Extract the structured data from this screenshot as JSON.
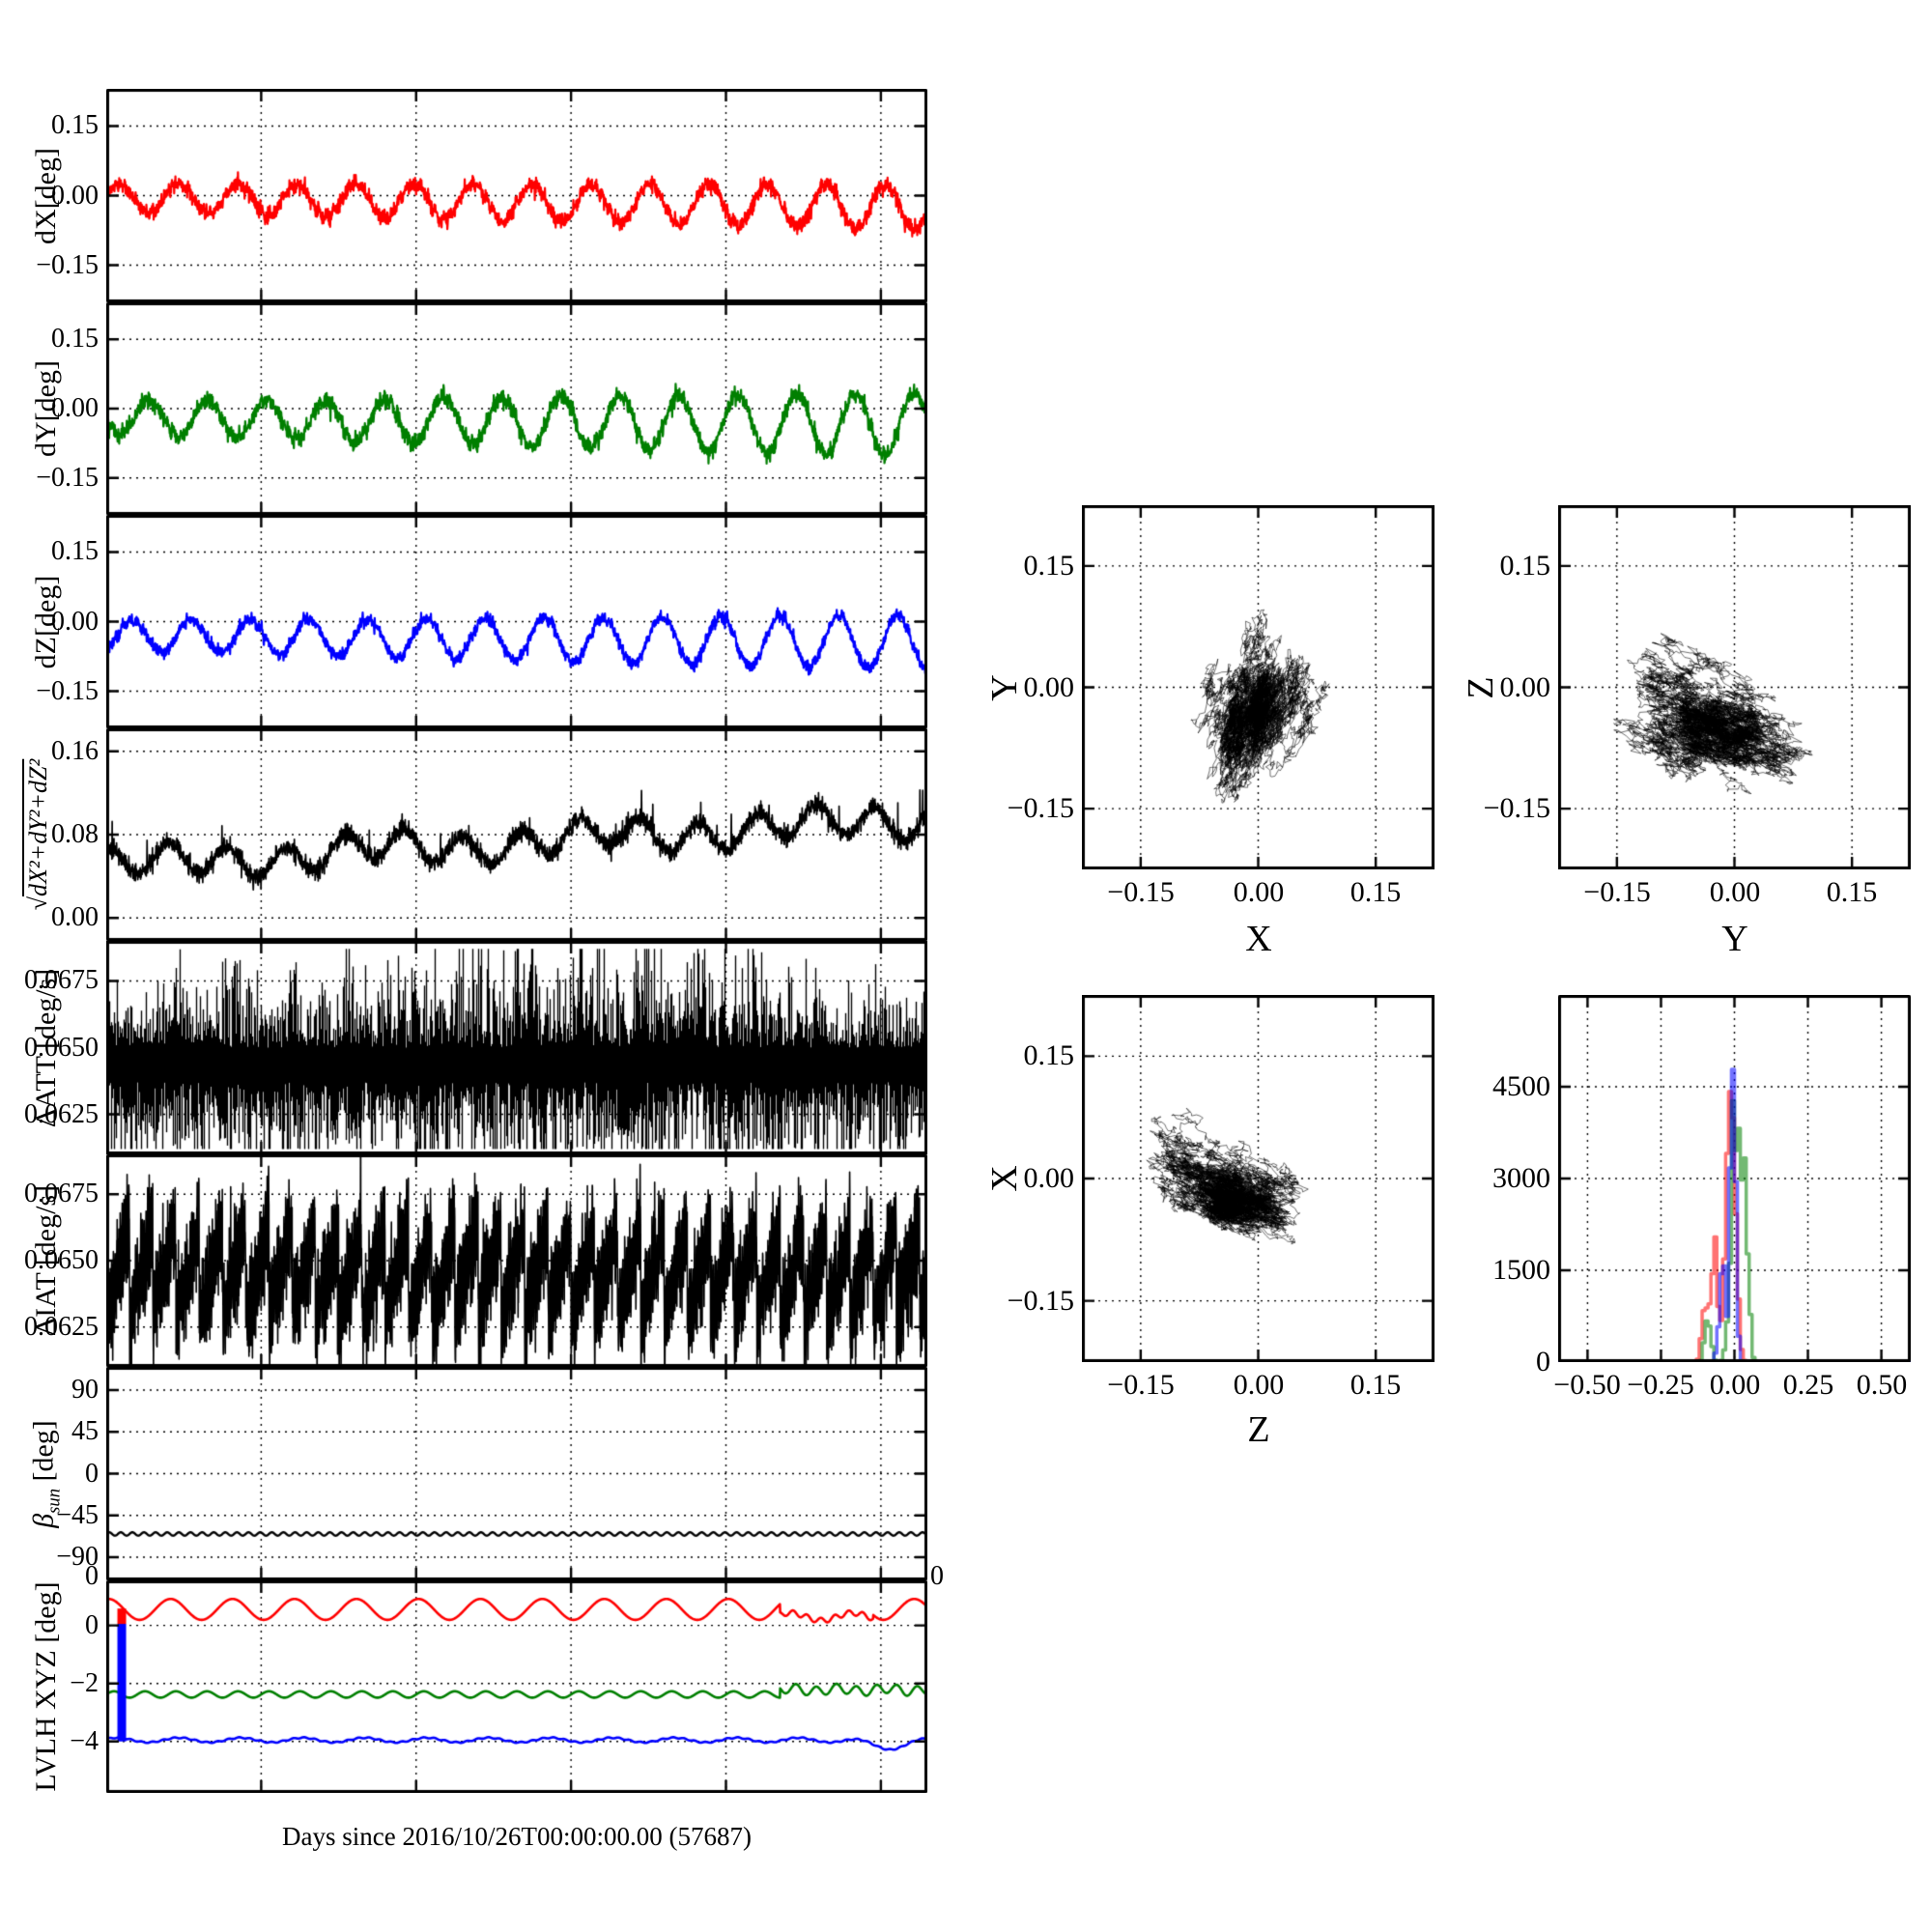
{
  "xlabel": "Days since 2016/10/26T00:00:00.00 (57687)",
  "stray_zero_left": "0",
  "stray_zero_right": "0",
  "chart_data": [
    {
      "type": "line",
      "id": "dX",
      "ylabel": "dX[deg]",
      "xlim_days": [
        0,
        5.3
      ],
      "x_gridline_days": [
        1,
        2,
        3,
        4,
        5
      ],
      "ylim": [
        -0.23,
        0.23
      ],
      "yticks": [
        {
          "v": 0.15,
          "label": "0.15"
        },
        {
          "v": 0,
          "label": "0.00"
        },
        {
          "v": -0.15,
          "label": "−0.15"
        }
      ],
      "series": [
        {
          "name": "dX",
          "color": "#ff0000",
          "mean_start": -0.005,
          "mean_end": -0.025,
          "amp_start": 0.03,
          "amp_end": 0.048,
          "period_days": 0.38,
          "phase": 0.1,
          "noise": 0.01
        }
      ]
    },
    {
      "type": "line",
      "id": "dY",
      "ylabel": "dY[deg]",
      "ylim": [
        -0.23,
        0.23
      ],
      "yticks": [
        {
          "v": 0.15,
          "label": "0.15"
        },
        {
          "v": 0,
          "label": "0.00"
        },
        {
          "v": -0.15,
          "label": "−0.15"
        }
      ],
      "series": [
        {
          "name": "dY",
          "color": "#007f00",
          "mean_start": -0.02,
          "mean_end": -0.035,
          "amp_start": 0.035,
          "amp_end": 0.07,
          "period_days": 0.38,
          "phase": 3.3,
          "noise": 0.011
        }
      ]
    },
    {
      "type": "line",
      "id": "dZ",
      "ylabel": "dZ[deg]",
      "ylim": [
        -0.23,
        0.23
      ],
      "yticks": [
        {
          "v": 0.15,
          "label": "0.15"
        },
        {
          "v": 0,
          "label": "0.00"
        },
        {
          "v": -0.15,
          "label": "−0.15"
        }
      ],
      "series": [
        {
          "name": "dZ",
          "color": "#0000ff",
          "mean_start": -0.03,
          "mean_end": -0.045,
          "amp_start": 0.032,
          "amp_end": 0.06,
          "period_days": 0.38,
          "phase": -1.2,
          "noise": 0.008
        }
      ]
    },
    {
      "type": "line",
      "id": "norm",
      "ylabel_radical": "√",
      "ylabel_expr": "dX²+dY²+dZ²",
      "ylim": [
        -0.022,
        0.182
      ],
      "yticks": [
        {
          "v": 0.16,
          "label": "0.16"
        },
        {
          "v": 0.08,
          "label": "0.08"
        },
        {
          "v": 0,
          "label": "0.00"
        }
      ],
      "series": [
        {
          "name": "sqrt(dX2+dY2+dZ2)",
          "color": "#000000",
          "base_start": 0.05,
          "base_end": 0.095,
          "wave_amp": 0.014,
          "period_days": 0.38,
          "noise": 0.0045,
          "spike_prob": 0.006,
          "spike_max": 0.02
        }
      ]
    },
    {
      "type": "band",
      "id": "dATT",
      "ylabel": "ΔATT [deg/s]",
      "ylim": [
        0.061,
        0.069
      ],
      "yticks": [
        {
          "v": 0.0675,
          "label": "0.0675"
        },
        {
          "v": 0.065,
          "label": "0.0650"
        },
        {
          "v": 0.0625,
          "label": "0.0625"
        }
      ],
      "series": [
        {
          "name": "ΔATT",
          "color": "#000000",
          "center": 0.0645,
          "typical_range": [
            0.062,
            0.0665
          ],
          "extreme_range": [
            0.0612,
            0.0685
          ],
          "mid_bulge_center_days": 2.9
        }
      ]
    },
    {
      "type": "line",
      "id": "dIAT",
      "ylabel": "ΔIAT [deg/s]",
      "ylim": [
        0.061,
        0.069
      ],
      "yticks": [
        {
          "v": 0.0675,
          "label": "0.0675"
        },
        {
          "v": 0.065,
          "label": "0.0650"
        },
        {
          "v": 0.0625,
          "label": "0.0625"
        }
      ],
      "series": [
        {
          "name": "ΔIAT",
          "color": "#000000",
          "center": 0.0645,
          "cycle_days": 0.15,
          "rise": 0.0021,
          "zigzag": 0.0012,
          "noise": 0.0006,
          "spike_prob": 0.004
        }
      ]
    },
    {
      "type": "line",
      "id": "beta_sun",
      "ylabel_beta": "β",
      "ylabel_beta_sub": "sun",
      "ylabel_beta_unit": " [deg]",
      "ylim": [
        -115,
        115
      ],
      "yticks": [
        {
          "v": 90,
          "label": "90"
        },
        {
          "v": 45,
          "label": "45"
        },
        {
          "v": 0,
          "label": "0"
        },
        {
          "v": -45,
          "label": "−45"
        },
        {
          "v": -90,
          "label": "−90"
        }
      ],
      "series": [
        {
          "name": "beta_sun",
          "color": "#000000",
          "mean": -65,
          "amp": 1.8,
          "period_days": 0.075
        }
      ]
    },
    {
      "type": "line",
      "id": "LVLH",
      "ylabel": "LVLH XYZ [deg]",
      "ylim": [
        -5.77,
        1.55
      ],
      "yticks": [
        {
          "v": 0,
          "label": "0"
        },
        {
          "v": -2,
          "label": "−2"
        },
        {
          "v": -4,
          "label": "−4"
        }
      ],
      "series": [
        {
          "name": "X",
          "color": "#ff0000",
          "mean": 0.55,
          "amp": 0.36,
          "period_days": 0.4,
          "phase": 1.33,
          "disturb_window_days": [
            4.35,
            4.95
          ]
        },
        {
          "name": "Y",
          "color": "#007f00",
          "mean": -2.38,
          "amp": 0.11,
          "period_days": 0.2,
          "phase": 0,
          "shift_after_days": 4.35,
          "shift_mean": -2.22
        },
        {
          "name": "Z",
          "color": "#0000ff",
          "mean": -3.95,
          "amp": 0.08,
          "period_days": 0.4,
          "phase": 0.5,
          "end_dip_center_days": 5.05,
          "end_dip_depth": 0.25
        }
      ],
      "event_spike": {
        "t_days": 0.1,
        "blue_from": -4,
        "blue_to": 0.05,
        "red_from": 0.05,
        "red_to": 0.58
      }
    },
    {
      "type": "scatter",
      "id": "XY",
      "xlabel": "X",
      "ylabel": "Y",
      "xlim": [
        -0.225,
        0.225
      ],
      "ylim": [
        -0.225,
        0.225
      ],
      "xticks": [
        {
          "v": -0.15,
          "label": "−0.15"
        },
        {
          "v": 0,
          "label": "0.00"
        },
        {
          "v": 0.15,
          "label": "0.15"
        }
      ],
      "yticks": [
        {
          "v": 0.15,
          "label": "0.15"
        },
        {
          "v": 0,
          "label": "0.00"
        },
        {
          "v": -0.15,
          "label": "−0.15"
        }
      ],
      "cloud": {
        "center_x": -0.015,
        "center_y": -0.028,
        "sigma_major": 0.052,
        "sigma_minor": 0.03,
        "tilt_deg": 70
      }
    },
    {
      "type": "scatter",
      "id": "YZ",
      "xlabel": "Y",
      "ylabel": "Z",
      "xlim": [
        -0.225,
        0.225
      ],
      "ylim": [
        -0.225,
        0.225
      ],
      "xticks": [
        {
          "v": -0.15,
          "label": "−0.15"
        },
        {
          "v": 0,
          "label": "0.00"
        },
        {
          "v": 0.15,
          "label": "0.15"
        }
      ],
      "yticks": [
        {
          "v": 0.15,
          "label": "0.15"
        },
        {
          "v": 0,
          "label": "0.00"
        },
        {
          "v": -0.15,
          "label": "−0.15"
        }
      ],
      "cloud": {
        "center_x": -0.025,
        "center_y": -0.04,
        "sigma_major": 0.058,
        "sigma_minor": 0.033,
        "tilt_deg": -20
      }
    },
    {
      "type": "scatter",
      "id": "ZX",
      "xlabel": "Z",
      "ylabel": "X",
      "xlim": [
        -0.225,
        0.225
      ],
      "ylim": [
        -0.225,
        0.225
      ],
      "xticks": [
        {
          "v": -0.15,
          "label": "−0.15"
        },
        {
          "v": 0,
          "label": "0.00"
        },
        {
          "v": 0.15,
          "label": "0.15"
        }
      ],
      "yticks": [
        {
          "v": 0.15,
          "label": "0.15"
        },
        {
          "v": 0,
          "label": "0.00"
        },
        {
          "v": -0.15,
          "label": "−0.15"
        }
      ],
      "cloud": {
        "center_x": -0.03,
        "center_y": -0.025,
        "sigma_major": 0.052,
        "sigma_minor": 0.03,
        "tilt_deg": -20
      }
    },
    {
      "type": "histogram",
      "id": "hist",
      "xlim": [
        -0.6,
        0.6
      ],
      "ylim": [
        0,
        6000
      ],
      "bin_width": 0.01,
      "xticks": [
        {
          "v": -0.5,
          "label": "−0.50"
        },
        {
          "v": -0.25,
          "label": "−0.25"
        },
        {
          "v": 0,
          "label": "0.00"
        },
        {
          "v": 0.25,
          "label": "0.25"
        },
        {
          "v": 0.5,
          "label": "0.50"
        }
      ],
      "yticks": [
        {
          "v": 4500,
          "label": "4500"
        },
        {
          "v": 3000,
          "label": "3000"
        },
        {
          "v": 1500,
          "label": "1500"
        },
        {
          "v": 0,
          "label": "0"
        }
      ],
      "series": [
        {
          "name": "dX",
          "color": "#ff0000",
          "components": [
            {
              "mu": -0.012,
              "sigma": 0.02,
              "peak": 5300
            },
            {
              "mu": -0.07,
              "sigma": 0.02,
              "peak": 1850
            },
            {
              "mu": -0.105,
              "sigma": 0.012,
              "peak": 700
            }
          ]
        },
        {
          "name": "dY",
          "color": "#008000",
          "components": [
            {
              "mu": 0.003,
              "sigma": 0.022,
              "peak": 3900
            },
            {
              "mu": 0.035,
              "sigma": 0.016,
              "peak": 2900
            },
            {
              "mu": -0.09,
              "sigma": 0.014,
              "peak": 800
            }
          ]
        },
        {
          "name": "dZ",
          "color": "#0000ff",
          "components": [
            {
              "mu": -0.004,
              "sigma": 0.012,
              "peak": 5850
            },
            {
              "mu": -0.04,
              "sigma": 0.016,
              "peak": 1500
            }
          ]
        }
      ]
    }
  ]
}
